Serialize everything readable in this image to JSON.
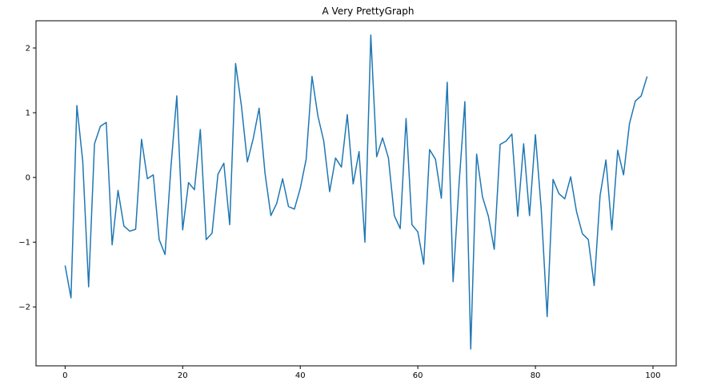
{
  "chart_data": {
    "type": "line",
    "title": "A Very PrettyGraph",
    "xlabel": "",
    "ylabel": "",
    "xlim": [
      -4.95,
      103.95
    ],
    "ylim": [
      -2.91,
      2.42
    ],
    "xticks": [
      0,
      20,
      40,
      60,
      80,
      100
    ],
    "yticks": [
      -2,
      -1,
      0,
      1,
      2
    ],
    "grid": false,
    "line_color": "#1f77b4",
    "series": [
      {
        "x": [
          0,
          1,
          2,
          3,
          4,
          5,
          6,
          7,
          8,
          9,
          10,
          11,
          12,
          13,
          14,
          15,
          16,
          17,
          18,
          19,
          20,
          21,
          22,
          23,
          24,
          25,
          26,
          27,
          28,
          29,
          30,
          31,
          32,
          33,
          34,
          35,
          36,
          37,
          38,
          39,
          40,
          41,
          42,
          43,
          44,
          45,
          46,
          47,
          48,
          49,
          50,
          51,
          52,
          53,
          54,
          55,
          56,
          57,
          58,
          59,
          60,
          61,
          62,
          63,
          64,
          65,
          66,
          67,
          68,
          69,
          70,
          71,
          72,
          73,
          74,
          75,
          76,
          77,
          78,
          79,
          80,
          81,
          82,
          83,
          84,
          85,
          86,
          87,
          88,
          89,
          90,
          91,
          92,
          93,
          94,
          95,
          96,
          97,
          98,
          99
        ],
        "y": [
          -1.36,
          -1.86,
          1.11,
          0.25,
          -1.69,
          0.52,
          0.79,
          0.85,
          -1.04,
          -0.2,
          -0.75,
          -0.83,
          -0.8,
          0.59,
          -0.02,
          0.04,
          -0.96,
          -1.19,
          0.16,
          1.26,
          -0.81,
          -0.08,
          -0.19,
          0.74,
          -0.96,
          -0.86,
          0.05,
          0.22,
          -0.73,
          1.76,
          1.1,
          0.24,
          0.6,
          1.07,
          0.07,
          -0.59,
          -0.4,
          -0.02,
          -0.45,
          -0.49,
          -0.17,
          0.28,
          1.56,
          0.95,
          0.56,
          -0.22,
          0.3,
          0.16,
          0.97,
          -0.1,
          0.4,
          -1.0,
          2.2,
          0.32,
          0.61,
          0.3,
          -0.59,
          -0.79,
          0.91,
          -0.73,
          -0.84,
          -1.34,
          0.43,
          0.28,
          -0.32,
          1.47,
          -1.61,
          -0.12,
          1.17,
          -2.65,
          0.36,
          -0.3,
          -0.6,
          -1.11,
          0.51,
          0.56,
          0.67,
          -0.6,
          0.52,
          -0.59,
          0.66,
          -0.5,
          -2.15,
          -0.03,
          -0.25,
          -0.33,
          0.01,
          -0.53,
          -0.87,
          -0.96,
          -1.67,
          -0.28,
          0.27,
          -0.81,
          0.42,
          0.04,
          0.83,
          1.18,
          1.26,
          1.56
        ]
      }
    ]
  }
}
